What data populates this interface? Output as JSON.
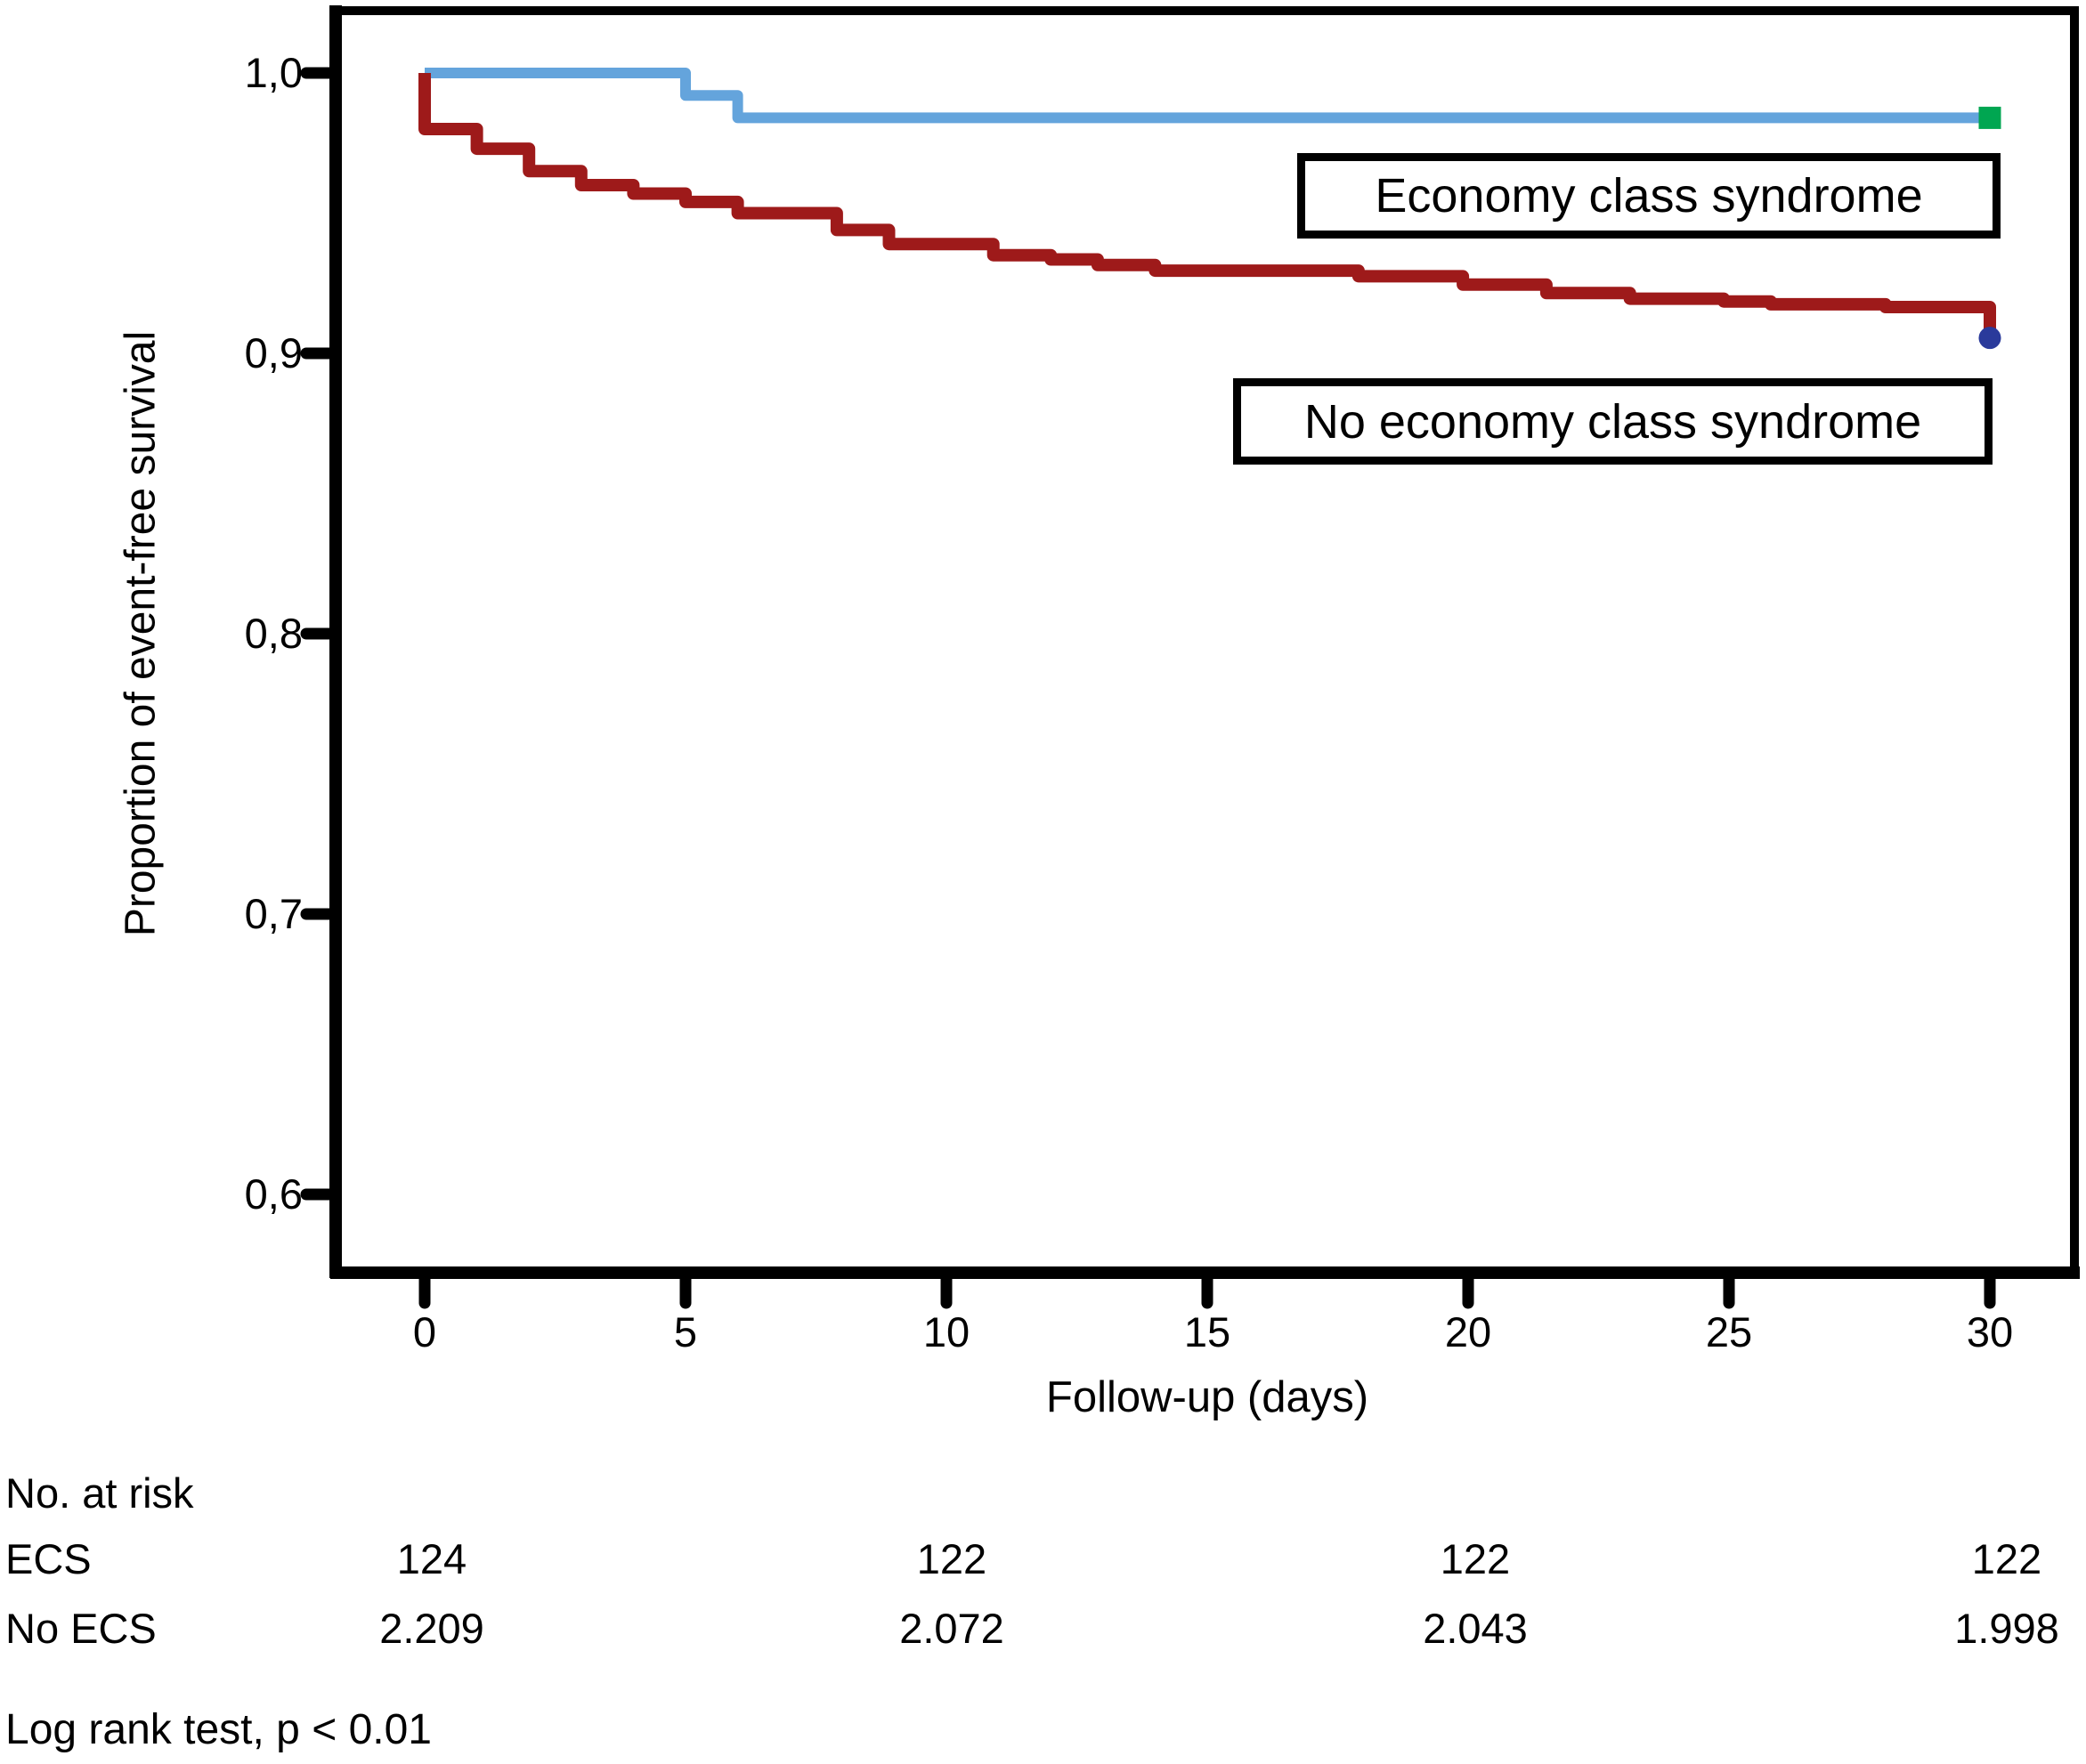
{
  "figure": {
    "background": "#ffffff"
  },
  "chart_data": {
    "type": "line",
    "subtype": "kaplan-meier-step",
    "title": "",
    "xlabel": "Follow-up (days)",
    "ylabel": "Proportion of event-free survival",
    "xlim": [
      0,
      30
    ],
    "ylim": [
      0.57,
      1.02
    ],
    "grid": "off",
    "legend_position": "inside-plot boxed labels",
    "x_ticks": {
      "values": [
        0,
        5,
        10,
        15,
        20,
        25,
        30
      ],
      "labels": [
        "0",
        "5",
        "10",
        "15",
        "20",
        "25",
        "30"
      ]
    },
    "y_ticks": {
      "values": [
        1.0,
        0.9,
        0.8,
        0.7,
        0.6
      ],
      "labels": [
        "1,0",
        "0,9",
        "0,8",
        "0,7",
        "0,6"
      ]
    },
    "frame_color": "#000000",
    "series": [
      {
        "name": "Economy class syndrome",
        "short_name": "ECS",
        "color": "#64a4dc",
        "line_width": 12,
        "start_value": 1.0,
        "steps": [
          [
            0,
            1.0
          ],
          [
            5,
            0.992
          ],
          [
            6,
            0.984
          ],
          [
            30,
            0.984
          ]
        ],
        "end_marker": {
          "shape": "square",
          "color": "#00a651",
          "size": 25
        }
      },
      {
        "name": "No economy class syndrome",
        "short_name": "No ECS",
        "color": "#9e1a1a",
        "line_width": 14,
        "start_value": 1.0,
        "steps": [
          [
            0,
            0.98
          ],
          [
            1,
            0.973
          ],
          [
            2,
            0.965
          ],
          [
            3,
            0.96
          ],
          [
            4,
            0.957
          ],
          [
            5,
            0.954
          ],
          [
            6,
            0.95
          ],
          [
            7.9,
            0.944
          ],
          [
            8.9,
            0.939
          ],
          [
            10.9,
            0.935
          ],
          [
            12,
            0.9335
          ],
          [
            12.9,
            0.9315
          ],
          [
            14,
            0.9295
          ],
          [
            17.9,
            0.9275
          ],
          [
            19.9,
            0.9245
          ],
          [
            21.5,
            0.9215
          ],
          [
            23.1,
            0.9195
          ],
          [
            24.9,
            0.9185
          ],
          [
            25.8,
            0.9175
          ],
          [
            28,
            0.9165
          ],
          [
            30,
            0.9055
          ]
        ],
        "end_marker": {
          "shape": "circle",
          "color": "#2a3a9b",
          "size": 25
        }
      }
    ]
  },
  "y_axis": {
    "title": "Proportion of event-free survival",
    "tick_labels": [
      "1,0",
      "0,9",
      "0,8",
      "0,7",
      "0,6"
    ]
  },
  "x_axis": {
    "title": "Follow-up (days)",
    "tick_labels": [
      "0",
      "5",
      "10",
      "15",
      "20",
      "25",
      "30"
    ]
  },
  "legend": {
    "ecs_label": "Economy class syndrome",
    "no_ecs_label": "No economy class syndrome"
  },
  "risk_table": {
    "header": "No. at risk",
    "column_days": [
      0,
      10,
      20,
      30
    ],
    "rows": [
      {
        "label": "ECS",
        "values": [
          "124",
          "122",
          "122",
          "122"
        ]
      },
      {
        "label": "No ECS",
        "values": [
          "2.209",
          "2.072",
          "2.043",
          "1.998"
        ]
      }
    ]
  },
  "footer": {
    "stats": "Log rank test, p < 0.01"
  }
}
